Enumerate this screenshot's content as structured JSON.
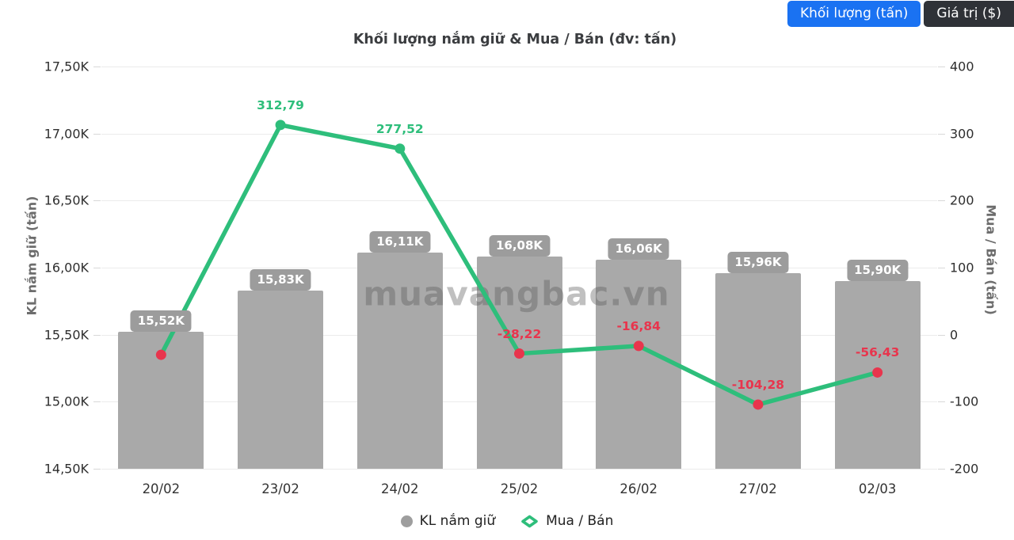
{
  "toggle": {
    "volume_label": "Khối lượng (tấn)",
    "value_label": "Giá trị ($)"
  },
  "title": "Khối lượng nắm giữ & Mua / Bán (đv: tấn)",
  "watermark": "muavangbac.vn",
  "colors": {
    "bar": "#a9a9a9",
    "badge": "#9c9c9c",
    "line": "#2ebe7b",
    "positive": "#2ebe7b",
    "negative": "#e8354d",
    "active_button": "#1a72f2",
    "inactive_button": "#2f3237"
  },
  "left_axis": {
    "title": "KL nắm giữ (tấn)",
    "ticks": [
      "17,50K",
      "17,00K",
      "16,50K",
      "16,00K",
      "15,50K",
      "15,00K",
      "14,50K"
    ]
  },
  "right_axis": {
    "title": "Mua / Bán (tấn)",
    "ticks": [
      "400",
      "300",
      "200",
      "100",
      "0",
      "-100",
      "-200"
    ]
  },
  "legend": {
    "items": [
      {
        "label": "KL nắm giữ"
      },
      {
        "label": "Mua / Bán"
      }
    ]
  },
  "chart_data": {
    "type": "bar",
    "subtype": "bar+line dual axis",
    "title": "Khối lượng nắm giữ & Mua / Bán (đv: tấn)",
    "categories": [
      "20/02",
      "23/02",
      "24/02",
      "25/02",
      "26/02",
      "27/02",
      "02/03"
    ],
    "series": [
      {
        "name": "KL nắm giữ",
        "type": "bar",
        "axis": "left",
        "values": [
          15520,
          15830,
          16110,
          16080,
          16060,
          15960,
          15900
        ],
        "labels": [
          "15,52K",
          "15,83K",
          "16,11K",
          "16,08K",
          "16,06K",
          "15,96K",
          "15,90K"
        ]
      },
      {
        "name": "Mua / Bán",
        "type": "line",
        "axis": "right",
        "values": [
          -30,
          312.79,
          277.52,
          -28.22,
          -16.84,
          -104.28,
          -56.43
        ],
        "labels": [
          "",
          "312,79",
          "277,52",
          "-28,22",
          "-16,84",
          "-104,28",
          "-56,43"
        ],
        "note_first_point": "estimated from pixels, label not shown in chart"
      }
    ],
    "left_ylabel": "KL nắm giữ (tấn)",
    "right_ylabel": "Mua / Bán (tấn)",
    "left_ylim": [
      14500,
      17500
    ],
    "right_ylim": [
      -200,
      400
    ],
    "grid": "horizontal",
    "legend_position": "bottom"
  }
}
